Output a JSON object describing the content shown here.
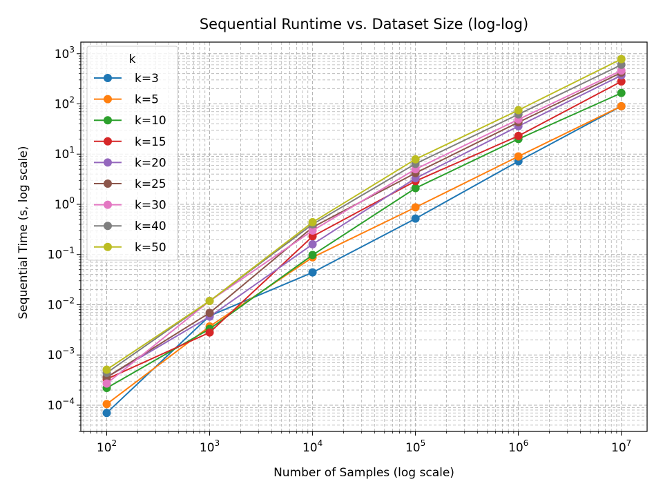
{
  "chart_data": {
    "type": "line",
    "title": "Sequential Runtime vs. Dataset Size (log-log)",
    "xlabel": "Number of Samples (log scale)",
    "ylabel": "Sequential Time (s, log scale)",
    "xscale": "log",
    "yscale": "log",
    "xlim": [
      56,
      17800000
    ],
    "ylim": [
      3e-05,
      1700
    ],
    "grid": true,
    "grid_which": "both",
    "legend_title": "k",
    "legend_position": "top-left",
    "x_ticks": [
      {
        "value": 100,
        "base": "10",
        "exp": "2"
      },
      {
        "value": 1000,
        "base": "10",
        "exp": "3"
      },
      {
        "value": 10000,
        "base": "10",
        "exp": "4"
      },
      {
        "value": 100000,
        "base": "10",
        "exp": "5"
      },
      {
        "value": 1000000,
        "base": "10",
        "exp": "6"
      },
      {
        "value": 10000000,
        "base": "10",
        "exp": "7"
      }
    ],
    "y_ticks": [
      {
        "value": 0.0001,
        "base": "10",
        "exp": "−4"
      },
      {
        "value": 0.001,
        "base": "10",
        "exp": "−3"
      },
      {
        "value": 0.01,
        "base": "10",
        "exp": "−2"
      },
      {
        "value": 0.1,
        "base": "10",
        "exp": "−1"
      },
      {
        "value": 1,
        "base": "10",
        "exp": "0"
      },
      {
        "value": 10,
        "base": "10",
        "exp": "1"
      },
      {
        "value": 100,
        "base": "10",
        "exp": "2"
      },
      {
        "value": 1000,
        "base": "10",
        "exp": "3"
      }
    ],
    "x": [
      100,
      1000,
      10000,
      100000,
      1000000,
      10000000
    ],
    "series": [
      {
        "name": "k=3",
        "color": "#1f77b4",
        "values": [
          7e-05,
          0.006,
          0.044,
          0.52,
          7.2,
          90
        ]
      },
      {
        "name": "k=5",
        "color": "#ff7f0e",
        "values": [
          0.000105,
          0.0037,
          0.088,
          0.87,
          9.0,
          90
        ]
      },
      {
        "name": "k=10",
        "color": "#2ca02c",
        "values": [
          0.00022,
          0.0033,
          0.098,
          2.1,
          20,
          165
        ]
      },
      {
        "name": "k=15",
        "color": "#d62728",
        "values": [
          0.00033,
          0.0028,
          0.23,
          2.9,
          23,
          280
        ]
      },
      {
        "name": "k=20",
        "color": "#9467bd",
        "values": [
          0.00036,
          0.0058,
          0.16,
          3.3,
          36,
          370
        ]
      },
      {
        "name": "k=25",
        "color": "#8c564b",
        "values": [
          0.00036,
          0.0069,
          0.35,
          4.2,
          43,
          420
        ]
      },
      {
        "name": "k=30",
        "color": "#e377c2",
        "values": [
          0.00027,
          0.0119,
          0.3,
          5.0,
          49,
          460
        ]
      },
      {
        "name": "k=40",
        "color": "#7f7f7f",
        "values": [
          0.00044,
          0.0119,
          0.4,
          6.4,
          62,
          600
        ]
      },
      {
        "name": "k=50",
        "color": "#bcbd22",
        "values": [
          0.00051,
          0.0119,
          0.44,
          7.9,
          75,
          780
        ]
      }
    ]
  }
}
